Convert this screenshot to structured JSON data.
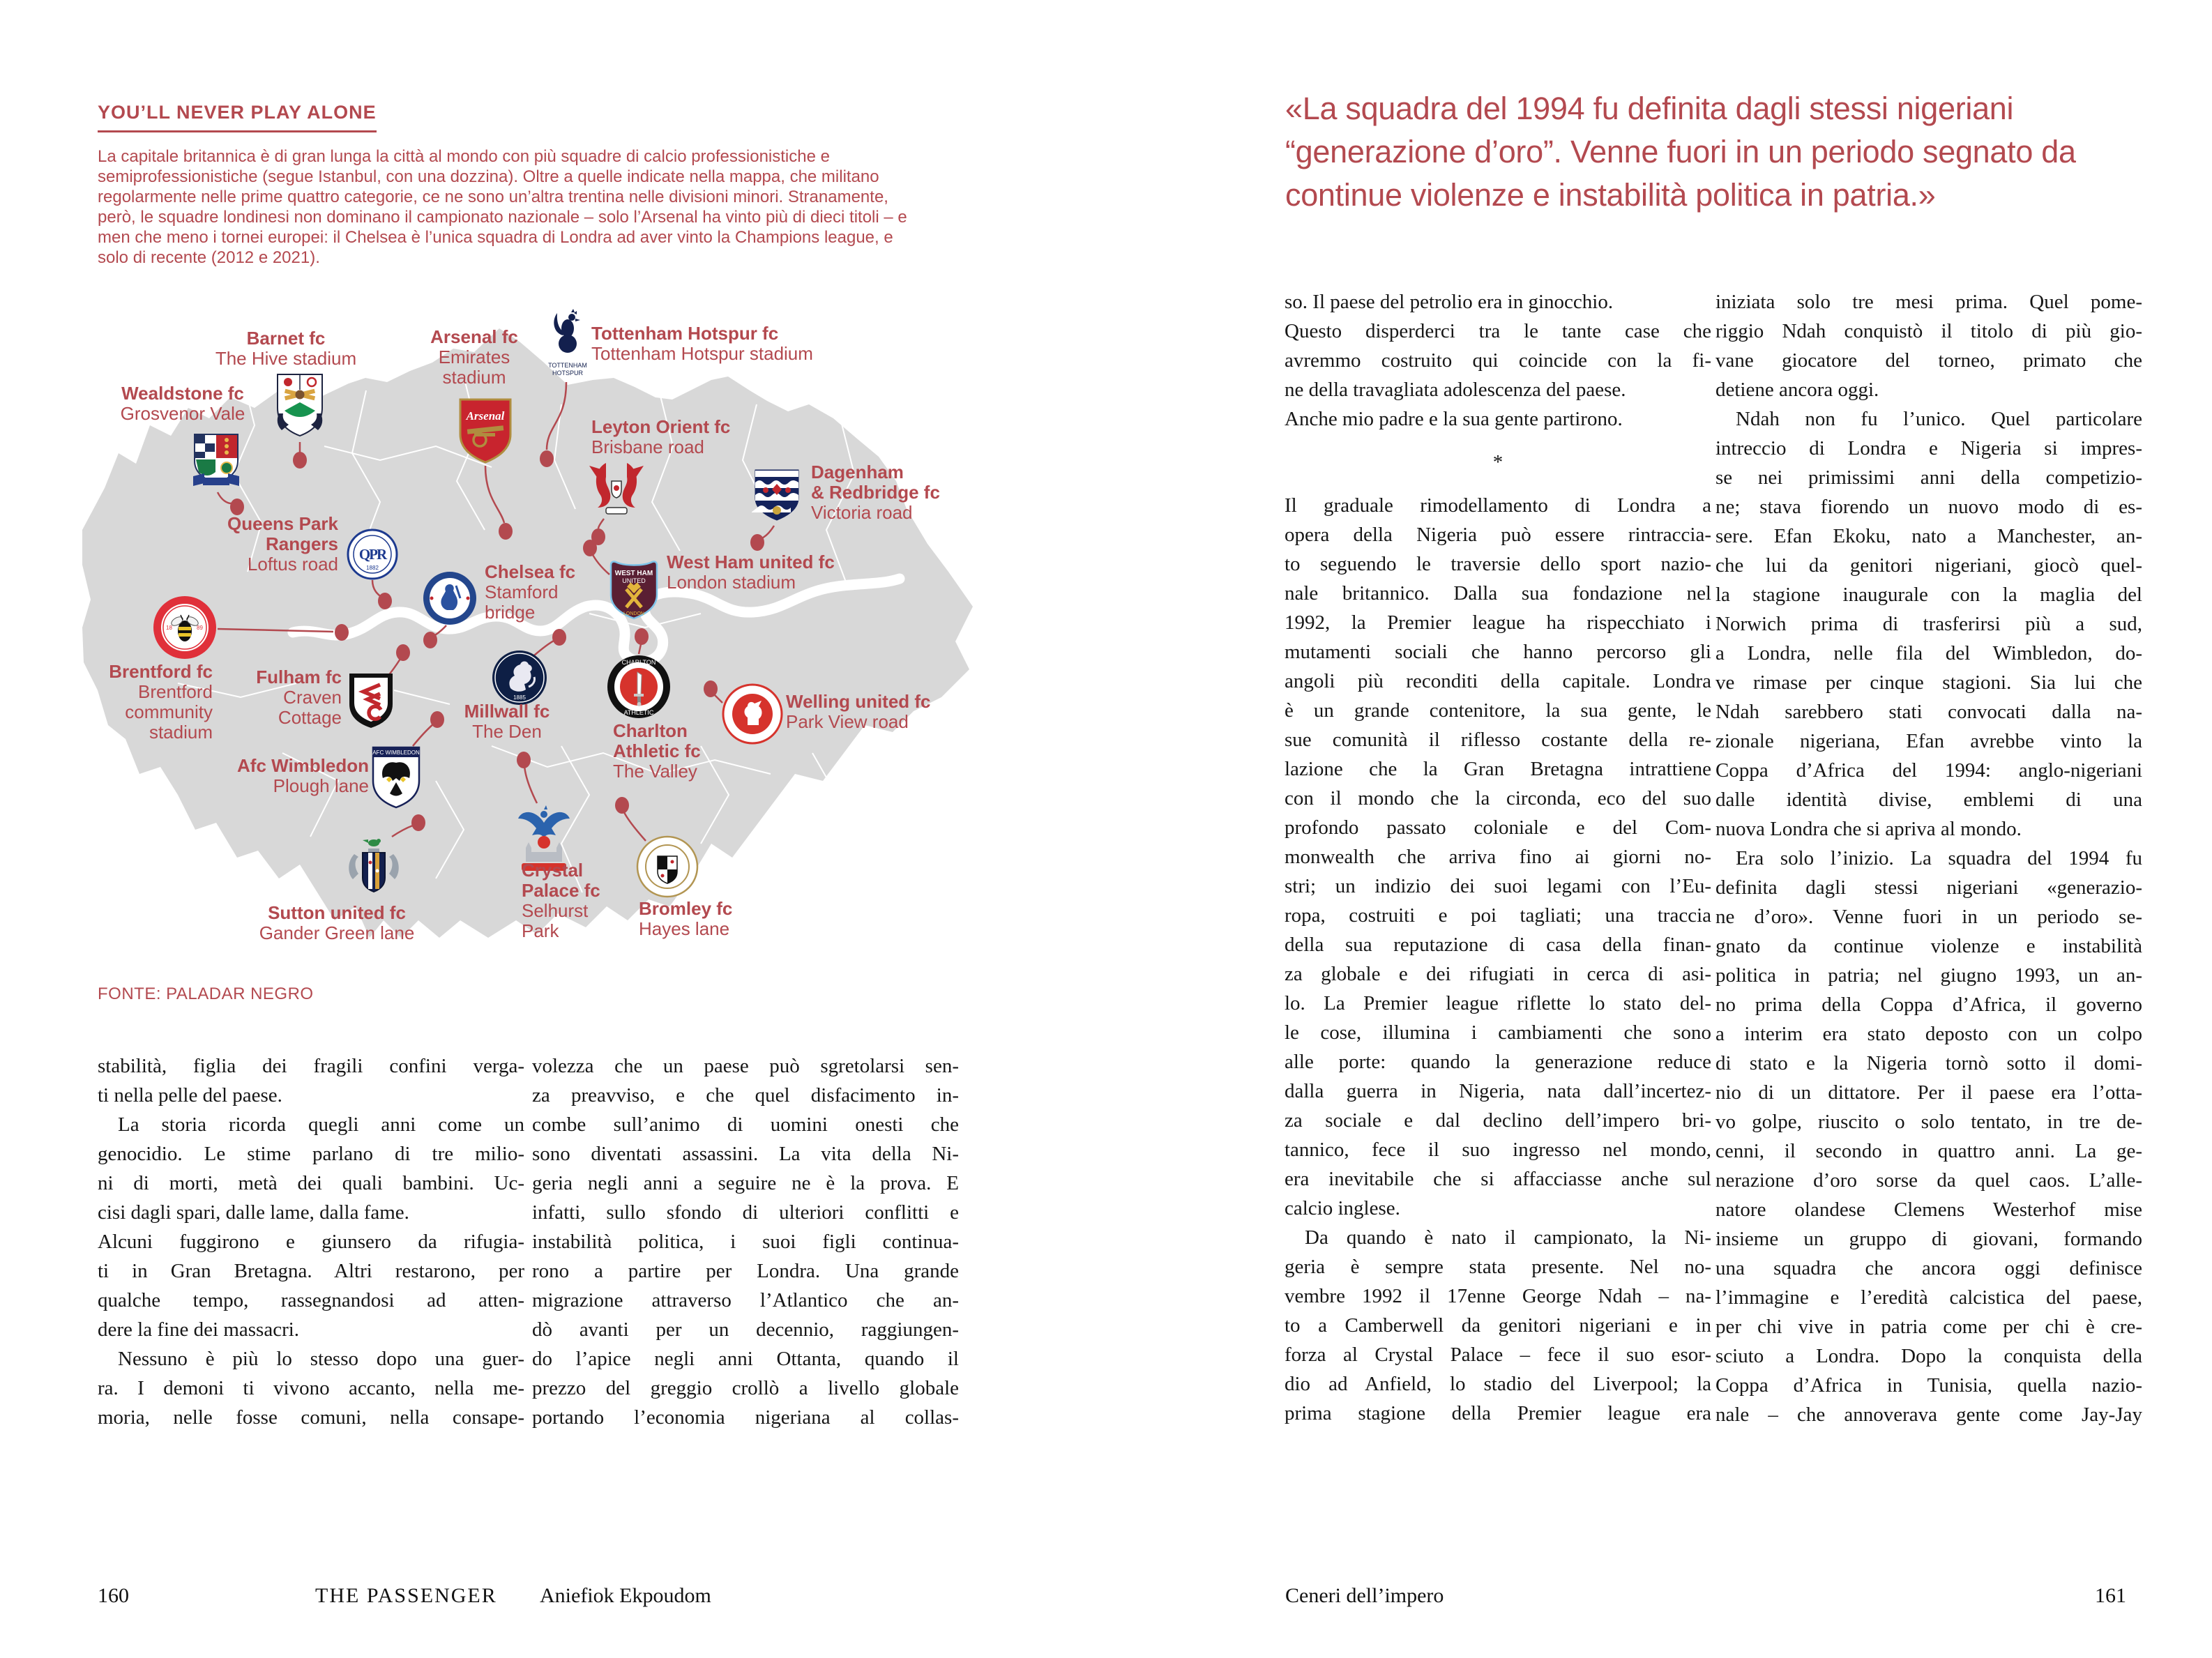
{
  "colors": {
    "accent": "#b3494f",
    "map_gray": "#d8d8d8"
  },
  "left": {
    "heading": "YOU’LL NEVER PLAY ALONE",
    "intro_lines": [
      "La capitale britannica è di gran lunga la città al mondo con più squadre di calcio professionistiche e",
      "semiprofessionistiche (segue Istanbul, con una dozzina). Oltre a quelle indicate nella mappa, che militano",
      "regolarmente nelle prime quattro categorie, ce ne sono un’altra trentina nelle divisioni minori. Stranamente,",
      "però, le squadre londinesi non dominano il campionato nazionale – solo l’Arsenal ha vinto più di dieci titoli – e",
      "men che meno i tornei europei: il Chelsea è l’unica squadra di Londra ad aver vinto la Champions league, e",
      "solo di recente (2012 e 2021)."
    ],
    "map": {
      "source": "FONTE: PALADAR NEGRO",
      "clubs": [
        {
          "crest_icon": "barnet-crest",
          "name_lines": [
            "Barnet fc"
          ],
          "stadium_lines": [
            "The Hive stadium"
          ]
        },
        {
          "crest_icon": "wealdstone-crest",
          "name_lines": [
            "Wealdstone fc"
          ],
          "stadium_lines": [
            "Grosvenor Vale"
          ]
        },
        {
          "crest_icon": "arsenal-crest",
          "name_lines": [
            "Arsenal fc"
          ],
          "stadium_lines": [
            "Emirates",
            "stadium"
          ],
          "crest_text": "Arsenal"
        },
        {
          "crest_icon": "tottenham-crest",
          "name_lines": [
            "Tottenham Hotspur fc"
          ],
          "stadium_lines": [
            "Tottenham Hotspur stadium"
          ],
          "crest_text": {
            "l1": "TOTTENHAM",
            "l2": "HOTSPUR"
          }
        },
        {
          "crest_icon": "leyton-orient-crest",
          "name_lines": [
            "Leyton Orient fc"
          ],
          "stadium_lines": [
            "Brisbane road"
          ]
        },
        {
          "crest_icon": "dagenham-redbridge-crest",
          "name_lines": [
            "Dagenham",
            "& Redbridge fc"
          ],
          "stadium_lines": [
            "Victoria road"
          ]
        },
        {
          "crest_icon": "qpr-crest",
          "name_lines": [
            "Queens Park",
            "Rangers"
          ],
          "stadium_lines": [
            "Loftus road"
          ],
          "crest_text": {
            "l1": "QPR",
            "l2": "1882"
          }
        },
        {
          "crest_icon": "chelsea-crest",
          "name_lines": [
            "Chelsea fc"
          ],
          "stadium_lines": [
            "Stamford",
            "bridge"
          ]
        },
        {
          "crest_icon": "west-ham-crest",
          "name_lines": [
            "West Ham united fc"
          ],
          "stadium_lines": [
            "London stadium"
          ],
          "crest_text": {
            "l1": "WEST HAM",
            "l2": "UNITED",
            "l3": "LONDON"
          }
        },
        {
          "crest_icon": "brentford-crest",
          "name_lines": [
            "Brentford fc"
          ],
          "stadium_lines": [
            "Brentford",
            "community",
            "stadium"
          ]
        },
        {
          "crest_icon": "fulham-crest",
          "name_lines": [
            "Fulham fc"
          ],
          "stadium_lines": [
            "Craven",
            "Cottage"
          ]
        },
        {
          "crest_icon": "millwall-crest",
          "name_lines": [
            "Millwall fc"
          ],
          "stadium_lines": [
            "The Den"
          ],
          "crest_text": "1885"
        },
        {
          "crest_icon": "afc-wimbledon-crest",
          "name_lines": [
            "Afc Wimbledon"
          ],
          "stadium_lines": [
            "Plough lane"
          ],
          "crest_text": "AFC WIMBLEDON"
        },
        {
          "crest_icon": "charlton-crest",
          "name_lines": [
            "Charlton",
            "Athletic fc"
          ],
          "stadium_lines": [
            "The Valley"
          ],
          "crest_text": {
            "l1": "CHARLTON",
            "l2": "ATHLETIC"
          }
        },
        {
          "crest_icon": "welling-crest",
          "name_lines": [
            "Welling united fc"
          ],
          "stadium_lines": [
            "Park View road"
          ]
        },
        {
          "crest_icon": "bromley-crest",
          "name_lines": [
            "Bromley fc"
          ],
          "stadium_lines": [
            "Hayes lane"
          ]
        },
        {
          "crest_icon": "crystal-palace-crest",
          "name_lines": [
            "Crystal",
            "Palace fc"
          ],
          "stadium_lines": [
            "Selhurst",
            "Park"
          ]
        },
        {
          "crest_icon": "sutton-crest",
          "name_lines": [
            "Sutton united fc"
          ],
          "stadium_lines": [
            "Gander Green lane"
          ]
        }
      ]
    },
    "columns": [
      [
        "stabilità, figlia dei fragili confini verga-",
        "ti nella pelle del paese.",
        " La storia ricorda quegli anni come un",
        "genocidio. Le stime parlano di tre milio-",
        "ni di morti, metà dei quali bambini. Uc-",
        "cisi dagli spari, dalle lame, dalla fame.",
        "Alcuni fuggirono e giunsero da rifugia-",
        "ti in Gran Bretagna. Altri restarono, per",
        "qualche tempo, rassegnandosi ad atten-",
        "dere la fine dei massacri.",
        " Nessuno è più lo stesso dopo una guer-",
        "ra. I demoni ti vivono accanto, nella me-",
        "moria, nelle fosse comuni, nella consape-"
      ],
      [
        "volezza che un paese può sgretolarsi sen-",
        "za preavviso, e che quel disfacimento in-",
        "combe sull’animo di uomini onesti che",
        "sono diventati assassini. La vita della Ni-",
        "geria negli anni a seguire ne è la prova. E",
        "infatti, sullo sfondo di ulteriori conflitti e",
        "instabilità politica, i suoi figli continua-",
        "rono a partire per Londra. Una grande",
        "migrazione attraverso l’Atlantico che an-",
        "dò avanti per un decennio, raggiungen-",
        "do l’apice negli anni Ottanta, quando il",
        "prezzo del greggio crollò a livello globale",
        "portando l’economia nigeriana al collas-"
      ]
    ],
    "footer": {
      "page_number": "160",
      "magazine": "THE PASSENGER",
      "author": "Aniefiok Ekpoudom"
    }
  },
  "right": {
    "quote_lines": [
      "«La squadra del 1994 fu definita dagli stessi nigeriani",
      "“generazione d’oro”. Venne fuori in un periodo segnato da",
      "continue violenze e instabilità politica in patria.»"
    ],
    "columns": [
      [
        "so. Il paese del petrolio era in ginocchio.",
        "Questo disperderci tra le tante case che",
        "avremmo costruito qui coincide con la fi-",
        "ne della travagliata adolescenza del paese.",
        "Anche mio padre e la sua gente partirono.",
        "*",
        "Il graduale rimodellamento di Londra a",
        "opera della Nigeria può essere rintraccia-",
        "to seguendo le traversie dello sport nazio-",
        "nale britannico. Dalla sua fondazione nel",
        "1992, la Premier league ha rispecchiato i",
        "mutamenti sociali che hanno percorso gli",
        "angoli più reconditi della capitale. Londra",
        "è un grande contenitore, la sua gente, le",
        "sue comunità il riflesso costante della re-",
        "lazione che la Gran Bretagna intrattiene",
        "con il mondo che la circonda, eco del suo",
        "profondo passato coloniale e del Com-",
        "monwealth che arriva fino ai giorni no-",
        "stri; un indizio dei suoi legami con l’Eu-",
        "ropa, costruiti e poi tagliati; una traccia",
        "della sua reputazione di casa della finan-",
        "za globale e dei rifugiati in cerca di asi-",
        "lo. La Premier league riflette lo stato del-",
        "le cose, illumina i cambiamenti che sono",
        "alle porte: quando la generazione reduce",
        "dalla guerra in Nigeria, nata dall’incertez-",
        "za sociale e dal declino dell’impero bri-",
        "tannico, fece il suo ingresso nel mondo,",
        "era inevitabile che si affacciasse anche sul",
        "calcio inglese.",
        " Da quando è nato il campionato, la Ni-",
        "geria è sempre stata presente. Nel no-",
        "vembre 1992 il 17enne George Ndah – na-",
        "to a Camberwell da genitori nigeriani e in",
        "forza al Crystal Palace – fece il suo esor-",
        "dio ad Anfield, lo stadio del Liverpool; la",
        "prima stagione della Premier league era"
      ],
      [
        "iniziata solo tre mesi prima. Quel pome-",
        "riggio Ndah conquistò il titolo di più gio-",
        "vane giocatore del torneo, primato che",
        "detiene ancora oggi.",
        " Ndah non fu l’unico. Quel particolare",
        "intreccio di Londra e Nigeria si impres-",
        "se nei primissimi anni della competizio-",
        "ne; stava fiorendo un nuovo modo di es-",
        "sere. Efan Ekoku, nato a Manchester, an-",
        "che lui da genitori nigeriani, giocò quel-",
        "la stagione inaugurale con la maglia del",
        "Norwich prima di trasferirsi più a sud,",
        "a Londra, nelle fila del Wimbledon, do-",
        "ve rimase per cinque stagioni. Sia lui che",
        "Ndah sarebbero stati convocati dalla na-",
        "zionale nigeriana, Efan avrebbe vinto la",
        "Coppa d’Africa del 1994: anglo-nigeriani",
        "dalle identità divise, emblemi di una",
        "nuova Londra che si apriva al mondo.",
        " Era solo l’inizio. La squadra del 1994 fu",
        "definita dagli stessi nigeriani «generazio-",
        "ne d’oro». Venne fuori in un periodo se-",
        "gnato da continue violenze e instabilità",
        "politica in patria; nel giugno 1993, un an-",
        "no prima della Coppa d’Africa, il governo",
        "a interim era stato deposto con un colpo",
        "di stato e la Nigeria tornò sotto il domi-",
        "nio di un dittatore. Per il paese era l’otta-",
        "vo golpe, riuscito o solo tentato, in tre de-",
        "cenni, il secondo in quattro anni. La ge-",
        "nerazione d’oro sorse da quel caos. L’alle-",
        "natore olandese Clemens Westerhof mise",
        "insieme un gruppo di giovani, formando",
        "una squadra che ancora oggi definisce",
        "l’immagine e l’eredità calcistica del paese,",
        "per chi vive in patria come per chi è cre-",
        "sciuto a Londra. Dopo la conquista della",
        "Coppa d’Africa in Tunisia, quella nazio-",
        "nale – che annoverava gente come Jay-Jay"
      ]
    ],
    "footer": {
      "chapter": "Ceneri dell’impero",
      "page_number": "161"
    }
  }
}
